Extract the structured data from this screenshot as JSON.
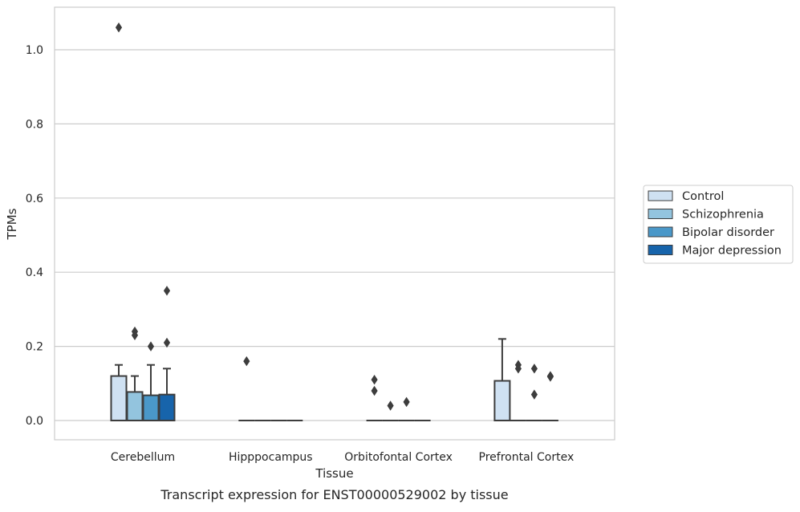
{
  "chart_data": {
    "type": "box",
    "title": "",
    "caption": "Transcript expression for ENST00000529002 by tissue",
    "xlabel": "Tissue",
    "ylabel": "TPMs",
    "ylim": [
      -0.05,
      1.12
    ],
    "yticks": [
      0.0,
      0.2,
      0.4,
      0.6,
      0.8,
      1.0
    ],
    "ytick_labels": [
      "0.0",
      "0.2",
      "0.4",
      "0.6",
      "0.8",
      "1.0"
    ],
    "grid": "horizontal",
    "legend_position": "right",
    "categories": [
      "Cerebellum",
      "Hipppocampus",
      "Orbitofontal Cortex",
      "Prefrontal Cortex"
    ],
    "series": [
      {
        "name": "Control",
        "color": "#cfe1f2",
        "boxes": [
          {
            "q1": 0.0,
            "median": 0.0,
            "q3": 0.12,
            "whisker_low": 0.0,
            "whisker_high": 0.15,
            "outliers": [
              1.06
            ]
          },
          {
            "q1": 0.0,
            "median": 0.0,
            "q3": 0.0,
            "whisker_low": 0.0,
            "whisker_high": 0.0,
            "outliers": [
              0.16
            ]
          },
          {
            "q1": 0.0,
            "median": 0.0,
            "q3": 0.0,
            "whisker_low": 0.0,
            "whisker_high": 0.0,
            "outliers": [
              0.11,
              0.08
            ]
          },
          {
            "q1": 0.0,
            "median": 0.0,
            "q3": 0.107,
            "whisker_low": 0.0,
            "whisker_high": 0.22,
            "outliers": []
          }
        ]
      },
      {
        "name": "Schizophrenia",
        "color": "#93c4de",
        "boxes": [
          {
            "q1": 0.0,
            "median": 0.0,
            "q3": 0.077,
            "whisker_low": 0.0,
            "whisker_high": 0.12,
            "outliers": [
              0.24,
              0.23
            ]
          },
          {
            "q1": 0.0,
            "median": 0.0,
            "q3": 0.0,
            "whisker_low": 0.0,
            "whisker_high": 0.0,
            "outliers": []
          },
          {
            "q1": 0.0,
            "median": 0.0,
            "q3": 0.0,
            "whisker_low": 0.0,
            "whisker_high": 0.0,
            "outliers": [
              0.04
            ]
          },
          {
            "q1": 0.0,
            "median": 0.0,
            "q3": 0.0,
            "whisker_low": 0.0,
            "whisker_high": 0.0,
            "outliers": [
              0.15,
              0.14
            ]
          }
        ]
      },
      {
        "name": "Bipolar disorder",
        "color": "#4a98c9",
        "boxes": [
          {
            "q1": 0.0,
            "median": 0.0,
            "q3": 0.068,
            "whisker_low": 0.0,
            "whisker_high": 0.15,
            "outliers": [
              0.2
            ]
          },
          {
            "q1": 0.0,
            "median": 0.0,
            "q3": 0.0,
            "whisker_low": 0.0,
            "whisker_high": 0.0,
            "outliers": []
          },
          {
            "q1": 0.0,
            "median": 0.0,
            "q3": 0.0,
            "whisker_low": 0.0,
            "whisker_high": 0.0,
            "outliers": [
              0.05
            ]
          },
          {
            "q1": 0.0,
            "median": 0.0,
            "q3": 0.0,
            "whisker_low": 0.0,
            "whisker_high": 0.0,
            "outliers": [
              0.14,
              0.07
            ]
          }
        ]
      },
      {
        "name": "Major depression",
        "color": "#1764ab",
        "boxes": [
          {
            "q1": 0.0,
            "median": 0.0,
            "q3": 0.07,
            "whisker_low": 0.0,
            "whisker_high": 0.14,
            "outliers": [
              0.35,
              0.21
            ]
          },
          {
            "q1": 0.0,
            "median": 0.0,
            "q3": 0.0,
            "whisker_low": 0.0,
            "whisker_high": 0.0,
            "outliers": []
          },
          {
            "q1": 0.0,
            "median": 0.0,
            "q3": 0.0,
            "whisker_low": 0.0,
            "whisker_high": 0.0,
            "outliers": []
          },
          {
            "q1": 0.0,
            "median": 0.0,
            "q3": 0.0,
            "whisker_low": 0.0,
            "whisker_high": 0.0,
            "outliers": [
              0.12,
              0.118
            ]
          }
        ]
      }
    ]
  }
}
